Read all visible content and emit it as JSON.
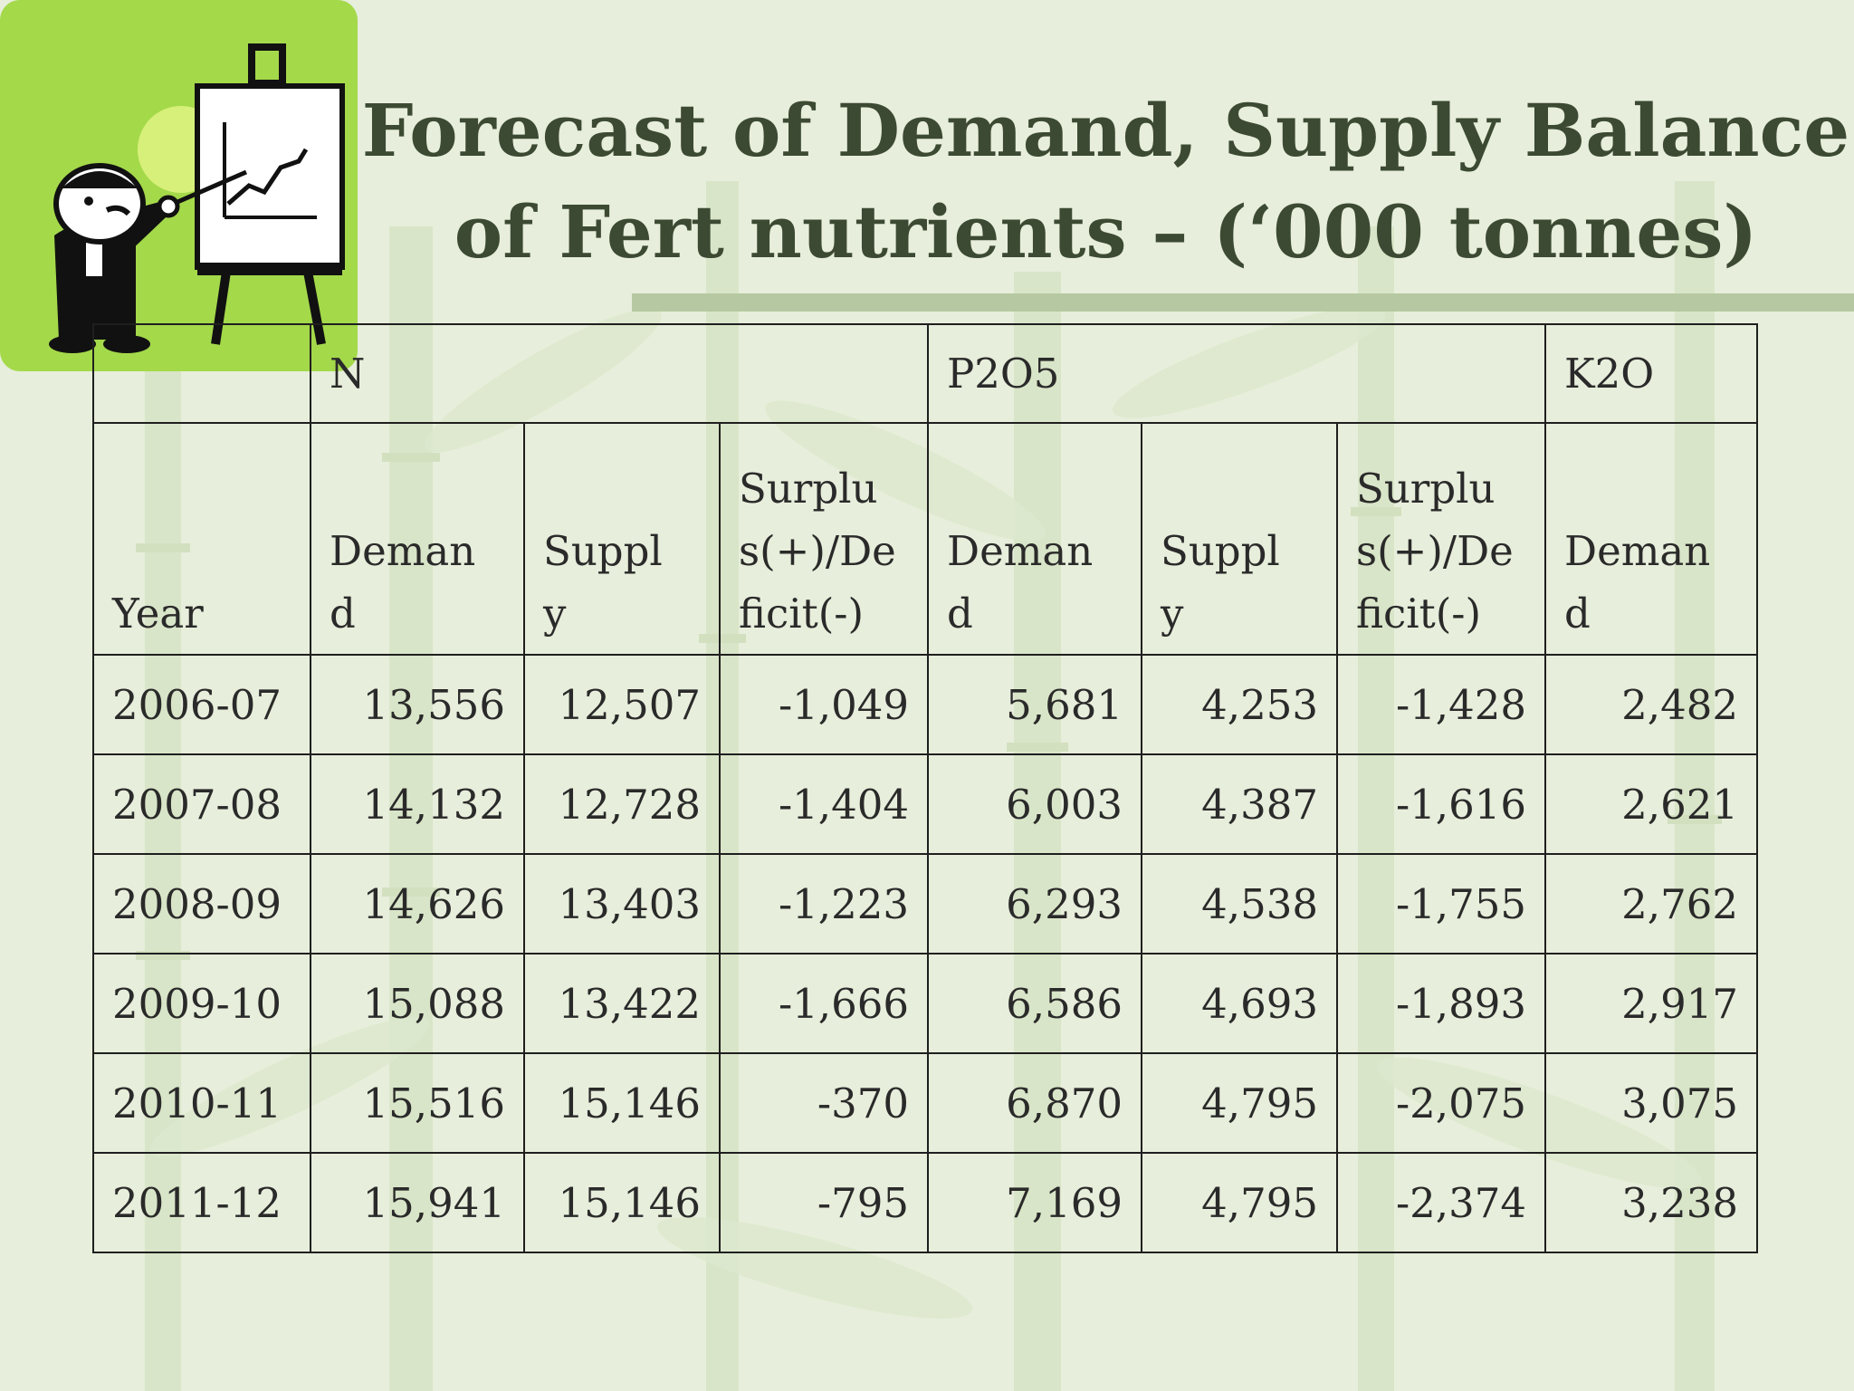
{
  "title": {
    "line1": "Forecast of Demand, Supply Balance",
    "line2": "of Fert nutrients – (‘000 tonnes)"
  },
  "table": {
    "groups": [
      "",
      "N",
      "P2O5",
      "K2O"
    ],
    "columns": [
      "Year",
      "Deman\nd",
      "Suppl\ny",
      "Surplu\ns(+)/De\nficit(-)",
      "Deman\nd",
      "Suppl\ny",
      "Surplu\ns(+)/De\nficit(-)",
      "Deman\nd"
    ],
    "rows": [
      [
        "2006-07",
        "13,556",
        "12,507",
        "-1,049",
        "5,681",
        "4,253",
        "-1,428",
        "2,482"
      ],
      [
        "2007-08",
        "14,132",
        "12,728",
        "-1,404",
        "6,003",
        "4,387",
        "-1,616",
        "2,621"
      ],
      [
        "2008-09",
        "14,626",
        "13,403",
        "-1,223",
        "6,293",
        "4,538",
        "-1,755",
        "2,762"
      ],
      [
        "2009-10",
        "15,088",
        "13,422",
        "-1,666",
        "6,586",
        "4,693",
        "-1,893",
        "2,917"
      ],
      [
        "2010-11",
        "15,516",
        "15,146",
        "-370",
        "6,870",
        "4,795",
        "-2,075",
        "3,075"
      ],
      [
        "2011-12",
        "15,941",
        "15,146",
        "-795",
        "7,169",
        "4,795",
        "-2,374",
        "3,238"
      ]
    ]
  },
  "colors": {
    "background": "#e7eedb",
    "logo_green": "#a4d94a",
    "title": "#3d4a33",
    "rule": "#b6c8a1"
  },
  "icons": {
    "logo": "presenter-with-chart-icon",
    "background": "bamboo-pattern"
  }
}
